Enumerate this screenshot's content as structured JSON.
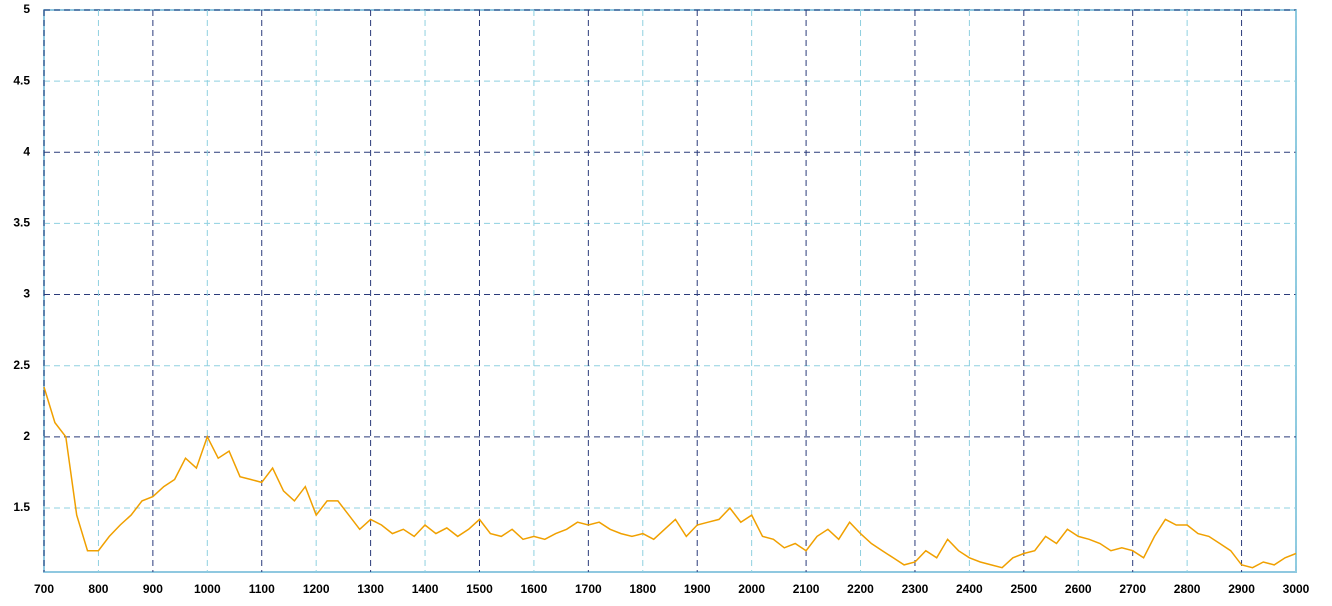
{
  "chart_data": {
    "type": "line",
    "x": [
      700,
      720,
      740,
      760,
      780,
      800,
      820,
      840,
      860,
      880,
      900,
      920,
      940,
      960,
      980,
      1000,
      1020,
      1040,
      1060,
      1080,
      1100,
      1120,
      1140,
      1160,
      1180,
      1200,
      1220,
      1240,
      1260,
      1280,
      1300,
      1320,
      1340,
      1360,
      1380,
      1400,
      1420,
      1440,
      1460,
      1480,
      1500,
      1520,
      1540,
      1560,
      1580,
      1600,
      1620,
      1640,
      1660,
      1680,
      1700,
      1720,
      1740,
      1760,
      1780,
      1800,
      1820,
      1840,
      1860,
      1880,
      1900,
      1920,
      1940,
      1960,
      1980,
      2000,
      2020,
      2040,
      2060,
      2080,
      2100,
      2120,
      2140,
      2160,
      2180,
      2200,
      2220,
      2240,
      2260,
      2280,
      2300,
      2320,
      2340,
      2360,
      2380,
      2400,
      2420,
      2440,
      2460,
      2480,
      2500,
      2520,
      2540,
      2560,
      2580,
      2600,
      2620,
      2640,
      2660,
      2680,
      2700,
      2720,
      2740,
      2760,
      2780,
      2800,
      2820,
      2840,
      2860,
      2880,
      2900,
      2920,
      2940,
      2960,
      2980,
      3000
    ],
    "series": [
      {
        "color": "#f0a000",
        "values": [
          2.35,
          2.1,
          2.0,
          1.45,
          1.2,
          1.2,
          1.3,
          1.38,
          1.45,
          1.55,
          1.58,
          1.65,
          1.7,
          1.85,
          1.78,
          2.0,
          1.85,
          1.9,
          1.72,
          1.7,
          1.68,
          1.78,
          1.62,
          1.55,
          1.65,
          1.45,
          1.55,
          1.55,
          1.45,
          1.35,
          1.42,
          1.38,
          1.32,
          1.35,
          1.3,
          1.38,
          1.32,
          1.36,
          1.3,
          1.35,
          1.42,
          1.32,
          1.3,
          1.35,
          1.28,
          1.3,
          1.28,
          1.32,
          1.35,
          1.4,
          1.38,
          1.4,
          1.35,
          1.32,
          1.3,
          1.32,
          1.28,
          1.35,
          1.42,
          1.3,
          1.38,
          1.4,
          1.42,
          1.5,
          1.4,
          1.45,
          1.3,
          1.28,
          1.22,
          1.25,
          1.2,
          1.3,
          1.35,
          1.28,
          1.4,
          1.32,
          1.25,
          1.2,
          1.15,
          1.1,
          1.12,
          1.2,
          1.15,
          1.28,
          1.2,
          1.15,
          1.12,
          1.1,
          1.08,
          1.15,
          1.18,
          1.2,
          1.3,
          1.25,
          1.35,
          1.3,
          1.28,
          1.25,
          1.2,
          1.22,
          1.2,
          1.15,
          1.3,
          1.42,
          1.38,
          1.38,
          1.32,
          1.3,
          1.25,
          1.2,
          1.1,
          1.08,
          1.12,
          1.1,
          1.15,
          1.18
        ]
      }
    ],
    "xlim": [
      700,
      3000
    ],
    "xticks": [
      700,
      800,
      900,
      1000,
      1100,
      1200,
      1300,
      1400,
      1500,
      1600,
      1700,
      1800,
      1900,
      2000,
      2100,
      2200,
      2300,
      2400,
      2500,
      2600,
      2700,
      2800,
      2900,
      3000
    ],
    "ylim": [
      1.05,
      5
    ],
    "yticks": [
      1.5,
      2,
      2.5,
      3,
      3.5,
      4,
      4.5,
      5
    ],
    "grid": true
  }
}
